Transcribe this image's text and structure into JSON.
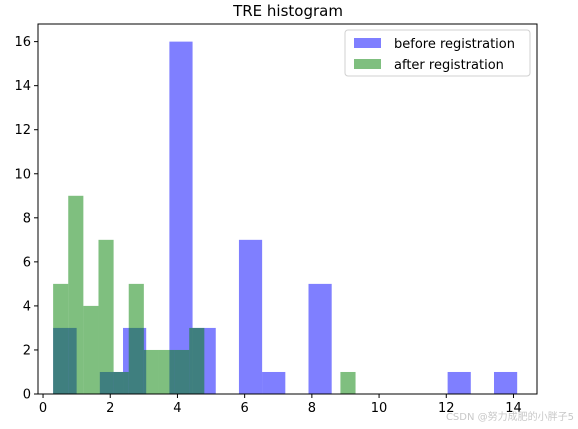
{
  "chart_data": {
    "type": "histogram",
    "title": "TRE histogram",
    "xlabel": "",
    "ylabel": "",
    "xlim": [
      -0.15,
      14.7
    ],
    "ylim": [
      0,
      16.8
    ],
    "xticks": [
      0,
      2,
      4,
      6,
      8,
      10,
      12,
      14
    ],
    "yticks": [
      0,
      2,
      4,
      6,
      8,
      10,
      12,
      14,
      16
    ],
    "legend_position": "top-right",
    "series": [
      {
        "name": "before registration",
        "color": "#0000ff",
        "opacity": 0.5,
        "bin_edges": [
          0.3,
          1.0,
          1.69,
          2.38,
          3.07,
          3.76,
          4.45,
          5.14,
          5.83,
          6.52,
          7.21,
          7.9,
          8.59,
          9.28,
          9.97,
          10.66,
          11.35,
          12.04,
          12.73,
          13.42,
          14.11
        ],
        "counts": [
          3,
          0,
          1,
          3,
          0,
          16,
          3,
          0,
          7,
          1,
          0,
          5,
          0,
          0,
          0,
          0,
          0,
          1,
          0,
          1
        ]
      },
      {
        "name": "after registration",
        "color": "#008000",
        "opacity": 0.5,
        "bin_edges": [
          0.3,
          0.75,
          1.2,
          1.65,
          2.1,
          2.55,
          3.0,
          3.45,
          3.9,
          4.35,
          4.8,
          5.25,
          5.7,
          6.15,
          6.6,
          7.05,
          7.5,
          7.95,
          8.4,
          8.85,
          9.3
        ],
        "counts": [
          5,
          9,
          4,
          7,
          1,
          5,
          2,
          2,
          2,
          3,
          0,
          0,
          0,
          0,
          0,
          0,
          0,
          0,
          0,
          1
        ]
      }
    ]
  },
  "watermark": "CSDN @努力成肥的小胖子5"
}
